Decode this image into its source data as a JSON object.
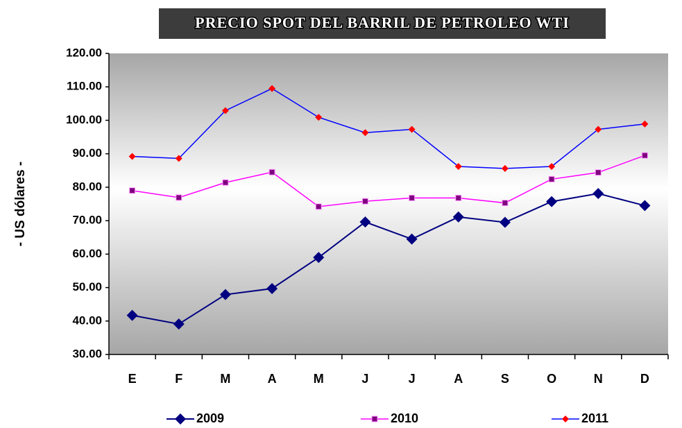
{
  "chart_data": {
    "type": "line",
    "title": "PRECIO SPOT DEL BARRIL DE PETROLEO WTI",
    "y_label": "- US dólares -",
    "categories": [
      "E",
      "F",
      "M",
      "A",
      "M",
      "J",
      "J",
      "A",
      "S",
      "O",
      "N",
      "D"
    ],
    "series": [
      {
        "name": "2009",
        "color": "#000080",
        "marker_color": "#000080",
        "marker": "diamond",
        "values": [
          41.7,
          39.1,
          47.9,
          49.7,
          59.0,
          69.6,
          64.5,
          71.1,
          69.5,
          75.7,
          78.1,
          74.5
        ]
      },
      {
        "name": "2010",
        "color": "#ff00ff",
        "marker_color": "#800080",
        "marker": "square",
        "values": [
          79.0,
          76.9,
          81.4,
          84.5,
          74.2,
          75.8,
          76.8,
          76.8,
          75.3,
          82.4,
          84.4,
          89.5
        ]
      },
      {
        "name": "2011",
        "color": "#0000ff",
        "marker_color": "#ff0000",
        "marker": "diamond",
        "values": [
          89.2,
          88.6,
          102.9,
          109.5,
          100.9,
          96.3,
          97.3,
          86.2,
          85.6,
          86.2,
          97.3,
          98.9
        ]
      }
    ],
    "ylim": [
      30,
      120
    ],
    "yticks": [
      {
        "value": 30,
        "label": "30.00"
      },
      {
        "value": 40,
        "label": "40.00"
      },
      {
        "value": 50,
        "label": "50.00"
      },
      {
        "value": 60,
        "label": "60.00"
      },
      {
        "value": 70,
        "label": "70.00"
      },
      {
        "value": 80,
        "label": "80.00"
      },
      {
        "value": 90,
        "label": "90.00"
      },
      {
        "value": 100,
        "label": "100.00"
      },
      {
        "value": 110,
        "label": "110.00"
      },
      {
        "value": 120,
        "label": "120.00"
      }
    ],
    "legend": "bottom"
  }
}
